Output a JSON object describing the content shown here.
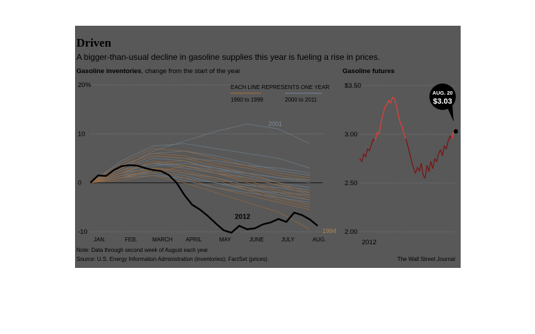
{
  "title": "Driven",
  "subtitle": "A bigger-than-usual decline in gasoline supplies this year is fueling a rise in prices.",
  "footer": {
    "note": "Note: Data through second week of August each year",
    "source": "Source: U.S. Energy Information Administration (inventories); FactSet (prices)",
    "credit": "The Wall Street Journal"
  },
  "chart_data": [
    {
      "type": "line",
      "title": "Gasoline inventories",
      "subtitle": ", change from the start of the year",
      "categories": [
        "JAN.",
        "FEB.",
        "MARCH",
        "APRIL",
        "MAY",
        "JUNE",
        "JULY",
        "AUG."
      ],
      "x_tick_labels": [
        "JAN.",
        "FEB.",
        "MARCH",
        "APRIL",
        "MAY",
        "JUNE",
        "JULY",
        "AUG."
      ],
      "y_tick_labels": [
        "20%",
        "10",
        "0",
        "-10"
      ],
      "ylim": [
        -10,
        20
      ],
      "grid": true,
      "legend": {
        "heading": "EACH LINE REPRESENTS ONE YEAR",
        "entries": [
          {
            "label": "1990 to 1999",
            "color": "#9b6a3c"
          },
          {
            "label": "2000 to 2011",
            "color": "#6f7f8c"
          }
        ],
        "placement": "top-center"
      },
      "annotations": [
        "2001",
        "2012",
        "1994"
      ],
      "highlight_series": {
        "name": "2012",
        "color": "#000000",
        "x": [
          0,
          0.25,
          0.5,
          0.75,
          1.0,
          1.25,
          1.5,
          1.75,
          2.0,
          2.25,
          2.5,
          2.75,
          3.0,
          3.25,
          3.5,
          3.75,
          4.0,
          4.25,
          4.5,
          4.75,
          5.0,
          5.25,
          5.5,
          5.75,
          6.0,
          6.25,
          6.5,
          6.75,
          7.0,
          7.25
        ],
        "values": [
          0,
          1.5,
          1.4,
          2.6,
          3.4,
          3.6,
          3.5,
          3.0,
          2.6,
          2.4,
          1.6,
          0,
          -2.5,
          -4.5,
          -5.5,
          -6.8,
          -8.3,
          -9.7,
          -10.2,
          -8.8,
          -9.5,
          -9.3,
          -8.5,
          -8.1,
          -7.4,
          -8.0,
          -6.1,
          -6.6,
          -7.5,
          -8.8
        ]
      },
      "background_series_1990s": [
        [
          0,
          1.0,
          3.0,
          2.5,
          1.0,
          -1.0,
          -3.0,
          -4.5
        ],
        [
          0,
          2.0,
          4.5,
          3.5,
          2.0,
          0.5,
          -1.5,
          -3.0
        ],
        [
          0,
          3.0,
          5.5,
          5.0,
          3.5,
          2.0,
          0.0,
          -2.0
        ],
        [
          0,
          1.5,
          2.5,
          1.0,
          -1.0,
          -2.5,
          -4.0,
          -5.5
        ],
        [
          0,
          2.5,
          4.0,
          4.5,
          2.5,
          1.0,
          -0.5,
          -2.5
        ],
        [
          0,
          0.5,
          1.5,
          0.0,
          -2.0,
          -4.0,
          -6.0,
          -9.5
        ],
        [
          0,
          3.5,
          6.0,
          5.5,
          4.0,
          3.0,
          1.5,
          0.5
        ],
        [
          0,
          2.0,
          3.0,
          2.0,
          0.5,
          -1.5,
          -3.5,
          -5.0
        ],
        [
          0,
          1.0,
          2.0,
          3.5,
          2.0,
          0.0,
          -2.0,
          -3.5
        ],
        [
          0,
          4.0,
          7.0,
          6.5,
          5.0,
          3.5,
          2.0,
          1.0
        ]
      ],
      "background_series_2000s": [
        [
          0,
          2.0,
          4.0,
          3.0,
          2.0,
          1.0,
          -0.5,
          -1.5
        ],
        [
          0,
          3.0,
          6.5,
          8.5,
          10.5,
          12.0,
          11.0,
          8.0
        ],
        [
          0,
          1.5,
          3.5,
          4.0,
          3.0,
          1.5,
          0.0,
          -1.0
        ],
        [
          0,
          2.5,
          5.0,
          4.5,
          3.0,
          2.0,
          1.0,
          0.0
        ],
        [
          0,
          1.0,
          2.5,
          1.5,
          0.0,
          -1.0,
          -2.5,
          -3.5
        ],
        [
          0,
          3.5,
          6.0,
          6.5,
          5.5,
          4.0,
          2.5,
          1.5
        ],
        [
          0,
          2.0,
          3.0,
          2.0,
          1.0,
          -0.5,
          -1.0,
          -2.0
        ],
        [
          0,
          4.5,
          7.5,
          8.0,
          7.0,
          6.0,
          5.0,
          3.0
        ],
        [
          0,
          1.5,
          2.0,
          0.5,
          -1.0,
          -2.0,
          -3.0,
          -4.0
        ],
        [
          0,
          3.0,
          5.5,
          5.0,
          4.5,
          3.5,
          3.0,
          2.0
        ],
        [
          0,
          2.0,
          4.0,
          3.5,
          2.5,
          2.0,
          1.0,
          0.5
        ],
        [
          0,
          1.0,
          1.5,
          1.0,
          0.0,
          -1.5,
          -2.0,
          -2.5
        ]
      ]
    },
    {
      "type": "line",
      "title": "Gasoline futures",
      "x_tick_labels": [
        "2012"
      ],
      "y_tick_labels": [
        "$3.50",
        "3.00",
        "2.50",
        "2.00"
      ],
      "ylim": [
        2.0,
        3.5
      ],
      "grid": true,
      "callout": {
        "date": "AUG. 20",
        "value": "$3.03"
      },
      "series": [
        {
          "color_up": "#e0413a",
          "color_down": "#7a1414",
          "x": [
            0,
            0.02,
            0.04,
            0.06,
            0.08,
            0.1,
            0.12,
            0.14,
            0.16,
            0.18,
            0.2,
            0.22,
            0.24,
            0.26,
            0.28,
            0.3,
            0.32,
            0.34,
            0.36,
            0.38,
            0.4,
            0.42,
            0.44,
            0.46,
            0.48,
            0.5,
            0.52,
            0.54,
            0.56,
            0.58,
            0.6,
            0.62,
            0.64,
            0.66,
            0.68,
            0.7,
            0.72,
            0.74,
            0.76,
            0.78,
            0.8,
            0.82,
            0.84,
            0.86,
            0.88,
            0.9,
            0.92,
            0.94,
            0.96,
            0.98,
            1.0
          ],
          "values": [
            2.75,
            2.72,
            2.8,
            2.77,
            2.85,
            2.83,
            2.9,
            2.95,
            2.93,
            3.02,
            3.0,
            3.12,
            3.2,
            3.28,
            3.3,
            3.35,
            3.32,
            3.38,
            3.36,
            3.3,
            3.2,
            3.12,
            3.08,
            3.0,
            2.95,
            2.88,
            2.8,
            2.72,
            2.65,
            2.6,
            2.66,
            2.62,
            2.7,
            2.58,
            2.55,
            2.68,
            2.62,
            2.72,
            2.65,
            2.75,
            2.72,
            2.8,
            2.84,
            2.78,
            2.88,
            2.85,
            2.93,
            2.98,
            2.95,
            3.05,
            3.03
          ]
        }
      ]
    }
  ]
}
